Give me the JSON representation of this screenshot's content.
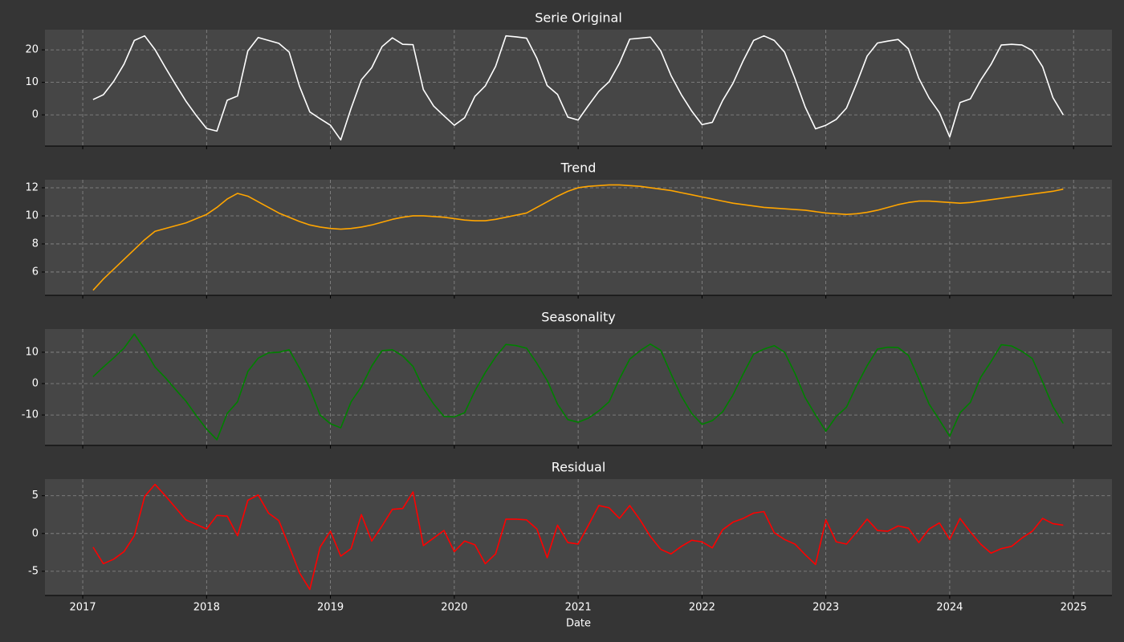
{
  "chart_data": [
    {
      "type": "line",
      "title": "Serie Original",
      "color": "#ffffff",
      "x": [
        "2017-01",
        "2017-02",
        "2017-03",
        "2017-04",
        "2017-05",
        "2017-06",
        "2017-07",
        "2017-08",
        "2017-09",
        "2017-10",
        "2017-11",
        "2017-12",
        "2018-01",
        "2018-02",
        "2018-03",
        "2018-04",
        "2018-05",
        "2018-06",
        "2018-07",
        "2018-08",
        "2018-09",
        "2018-10",
        "2018-11",
        "2018-12",
        "2019-01",
        "2019-02",
        "2019-03",
        "2019-04",
        "2019-05",
        "2019-06",
        "2019-07",
        "2019-08",
        "2019-09",
        "2019-10",
        "2019-11",
        "2019-12",
        "2020-01",
        "2020-02",
        "2020-03",
        "2020-04",
        "2020-05",
        "2020-06",
        "2020-07",
        "2020-08",
        "2020-09",
        "2020-10",
        "2020-11",
        "2020-12",
        "2021-01",
        "2021-02",
        "2021-03",
        "2021-04",
        "2021-05",
        "2021-06",
        "2021-07",
        "2021-08",
        "2021-09",
        "2021-10",
        "2021-11",
        "2021-12",
        "2022-01",
        "2022-02",
        "2022-03",
        "2022-04",
        "2022-05",
        "2022-06",
        "2022-07",
        "2022-08",
        "2022-09",
        "2022-10",
        "2022-11",
        "2022-12",
        "2023-01",
        "2023-02",
        "2023-03",
        "2023-04",
        "2023-05",
        "2023-06",
        "2023-07",
        "2023-08",
        "2023-09",
        "2023-10",
        "2023-11",
        "2023-12",
        "2024-01",
        "2024-02",
        "2024-03",
        "2024-04",
        "2024-05",
        "2024-06",
        "2024-07",
        "2024-08",
        "2024-09",
        "2024-10",
        "2024-11"
      ],
      "values": [
        4.7,
        6.2,
        10.3,
        15.6,
        22.9,
        24.3,
        20.1,
        14.6,
        9.3,
        4.2,
        -0.2,
        -4.2,
        -5,
        4.5,
        5.8,
        19.7,
        23.8,
        22.9,
        22,
        19.3,
        8.8,
        0.9,
        -1.2,
        -3.2,
        -7.7,
        2,
        10.8,
        14.5,
        21,
        23.7,
        21.7,
        21.6,
        7.8,
        2.7,
        -0.3,
        -3.2,
        -0.9,
        5.7,
        8.9,
        14.9,
        24.3,
        24,
        23.6,
        17.4,
        9,
        6.3,
        -0.7,
        -1.6,
        2.9,
        7.2,
        10.2,
        15.9,
        23.3,
        23.6,
        23.9,
        19.7,
        12.1,
        6.2,
        1.2,
        -3,
        -2.3,
        4.4,
        9.7,
        16.7,
        22.9,
        24.3,
        22.9,
        19.3,
        11.2,
        2.4,
        -4.3,
        -3.2,
        -1.4,
        2.1,
        9.8,
        18.1,
        22.1,
        22.7,
        23.2,
        20.3,
        11.3,
        5.2,
        0.7,
        -6.8,
        3.8,
        4.9,
        10.7,
        15.5,
        21.5,
        21.7,
        21.5,
        19.8,
        14.8,
        5.3,
        0
      ],
      "xlim": [
        2016.695,
        2025.31
      ],
      "xticks": [
        2017,
        2018,
        2019,
        2020,
        2021,
        2022,
        2023,
        2024,
        2025
      ],
      "ylim": [
        -9.6,
        26.2
      ],
      "yticks": [
        0,
        10,
        20
      ],
      "grid": true
    },
    {
      "type": "line",
      "title": "Trend",
      "color": "#ffa500",
      "x": [
        "2017-01",
        "2017-02",
        "2017-03",
        "2017-04",
        "2017-05",
        "2017-06",
        "2017-07",
        "2017-08",
        "2017-09",
        "2017-10",
        "2017-11",
        "2017-12",
        "2018-01",
        "2018-02",
        "2018-03",
        "2018-04",
        "2018-05",
        "2018-06",
        "2018-07",
        "2018-08",
        "2018-09",
        "2018-10",
        "2018-11",
        "2018-12",
        "2019-01",
        "2019-02",
        "2019-03",
        "2019-04",
        "2019-05",
        "2019-06",
        "2019-07",
        "2019-08",
        "2019-09",
        "2019-10",
        "2019-11",
        "2019-12",
        "2020-01",
        "2020-02",
        "2020-03",
        "2020-04",
        "2020-05",
        "2020-06",
        "2020-07",
        "2020-08",
        "2020-09",
        "2020-10",
        "2020-11",
        "2020-12",
        "2021-01",
        "2021-02",
        "2021-03",
        "2021-04",
        "2021-05",
        "2021-06",
        "2021-07",
        "2021-08",
        "2021-09",
        "2021-10",
        "2021-11",
        "2021-12",
        "2022-01",
        "2022-02",
        "2022-03",
        "2022-04",
        "2022-05",
        "2022-06",
        "2022-07",
        "2022-08",
        "2022-09",
        "2022-10",
        "2022-11",
        "2022-12",
        "2023-01",
        "2023-02",
        "2023-03",
        "2023-04",
        "2023-05",
        "2023-06",
        "2023-07",
        "2023-08",
        "2023-09",
        "2023-10",
        "2023-11",
        "2023-12",
        "2024-01",
        "2024-02",
        "2024-03",
        "2024-04",
        "2024-05",
        "2024-06",
        "2024-07",
        "2024-08",
        "2024-09",
        "2024-10",
        "2024-11"
      ],
      "values": [
        4.7,
        5.5,
        6.2,
        6.9,
        7.6,
        8.3,
        8.9,
        9.1,
        9.3,
        9.5,
        9.8,
        10.1,
        10.6,
        11.2,
        11.6,
        11.4,
        11.0,
        10.6,
        10.2,
        9.9,
        9.6,
        9.35,
        9.2,
        9.1,
        9.05,
        9.1,
        9.2,
        9.35,
        9.55,
        9.75,
        9.9,
        10.0,
        10.0,
        9.95,
        9.9,
        9.8,
        9.7,
        9.65,
        9.65,
        9.75,
        9.9,
        10.05,
        10.2,
        10.6,
        11.0,
        11.4,
        11.75,
        12.0,
        12.1,
        12.15,
        12.2,
        12.2,
        12.15,
        12.1,
        12.0,
        11.9,
        11.8,
        11.65,
        11.5,
        11.35,
        11.2,
        11.05,
        10.9,
        10.8,
        10.7,
        10.6,
        10.55,
        10.5,
        10.45,
        10.4,
        10.3,
        10.2,
        10.15,
        10.1,
        10.15,
        10.25,
        10.4,
        10.6,
        10.8,
        10.95,
        11.05,
        11.05,
        11.0,
        10.95,
        10.9,
        10.95,
        11.05,
        11.15,
        11.25,
        11.35,
        11.45,
        11.55,
        11.65,
        11.75,
        11.9
      ],
      "xlim": [
        2016.695,
        2025.31
      ],
      "xticks": [
        2017,
        2018,
        2019,
        2020,
        2021,
        2022,
        2023,
        2024,
        2025
      ],
      "ylim": [
        4.34,
        12.57
      ],
      "yticks": [
        6,
        8,
        10,
        12
      ],
      "grid": true
    },
    {
      "type": "line",
      "title": "Seasonality",
      "color": "#008000",
      "x": [
        "2017-01",
        "2017-02",
        "2017-03",
        "2017-04",
        "2017-05",
        "2017-06",
        "2017-07",
        "2017-08",
        "2017-09",
        "2017-10",
        "2017-11",
        "2017-12",
        "2018-01",
        "2018-02",
        "2018-03",
        "2018-04",
        "2018-05",
        "2018-06",
        "2018-07",
        "2018-08",
        "2018-09",
        "2018-10",
        "2018-11",
        "2018-12",
        "2019-01",
        "2019-02",
        "2019-03",
        "2019-04",
        "2019-05",
        "2019-06",
        "2019-07",
        "2019-08",
        "2019-09",
        "2019-10",
        "2019-11",
        "2019-12",
        "2020-01",
        "2020-02",
        "2020-03",
        "2020-04",
        "2020-05",
        "2020-06",
        "2020-07",
        "2020-08",
        "2020-09",
        "2020-10",
        "2020-11",
        "2020-12",
        "2021-01",
        "2021-02",
        "2021-03",
        "2021-04",
        "2021-05",
        "2021-06",
        "2021-07",
        "2021-08",
        "2021-09",
        "2021-10",
        "2021-11",
        "2021-12",
        "2022-01",
        "2022-02",
        "2022-03",
        "2022-04",
        "2022-05",
        "2022-06",
        "2022-07",
        "2022-08",
        "2022-09",
        "2022-10",
        "2022-11",
        "2022-12",
        "2023-01",
        "2023-02",
        "2023-03",
        "2023-04",
        "2023-05",
        "2023-06",
        "2023-07",
        "2023-08",
        "2023-09",
        "2023-10",
        "2023-11",
        "2023-12",
        "2024-01",
        "2024-02",
        "2024-03",
        "2024-04",
        "2024-05",
        "2024-06",
        "2024-07",
        "2024-08",
        "2024-09",
        "2024-10",
        "2024-11"
      ],
      "values": [
        2.2,
        5.3,
        8.2,
        11.3,
        15.8,
        11,
        5.3,
        1.9,
        -1.9,
        -5.6,
        -10.2,
        -14.5,
        -17.9,
        -9.5,
        -5.8,
        3.9,
        8.1,
        9.8,
        10,
        10.8,
        5,
        -1.5,
        -10,
        -12.8,
        -14.1,
        -5.8,
        -1,
        5.6,
        10.5,
        10.8,
        8.8,
        5.5,
        -1.5,
        -6.5,
        -10.5,
        -10.6,
        -9.3,
        -2.3,
        3.5,
        8.5,
        12.5,
        12.1,
        11.3,
        6.5,
        1,
        -6.5,
        -11.5,
        -12.3,
        -11,
        -8.7,
        -5.8,
        1.5,
        7.8,
        10.5,
        12.6,
        10.6,
        3.1,
        -4,
        -9.5,
        -13,
        -11.8,
        -9,
        -3.6,
        3.1,
        9.4,
        11,
        12.1,
        10,
        3.3,
        -4.5,
        -10,
        -15.2,
        -10.5,
        -7.5,
        -0.5,
        5.7,
        11,
        11.6,
        11.5,
        9,
        1.5,
        -6.5,
        -11.6,
        -16.8,
        -9.3,
        -6,
        2,
        7,
        12.4,
        12,
        10.3,
        8,
        0.5,
        -7.3,
        -12.7
      ],
      "xlim": [
        2016.695,
        2025.31
      ],
      "xticks": [
        2017,
        2018,
        2019,
        2020,
        2021,
        2022,
        2023,
        2024,
        2025
      ],
      "ylim": [
        -19.7,
        17.4
      ],
      "yticks": [
        -10,
        0,
        10
      ],
      "grid": true
    },
    {
      "type": "line",
      "title": "Residual",
      "color": "#ff0000",
      "xlabel": "Date",
      "x": [
        "2017-01",
        "2017-02",
        "2017-03",
        "2017-04",
        "2017-05",
        "2017-06",
        "2017-07",
        "2017-08",
        "2017-09",
        "2017-10",
        "2017-11",
        "2017-12",
        "2018-01",
        "2018-02",
        "2018-03",
        "2018-04",
        "2018-05",
        "2018-06",
        "2018-07",
        "2018-08",
        "2018-09",
        "2018-10",
        "2018-11",
        "2018-12",
        "2019-01",
        "2019-02",
        "2019-03",
        "2019-04",
        "2019-05",
        "2019-06",
        "2019-07",
        "2019-08",
        "2019-09",
        "2019-10",
        "2019-11",
        "2019-12",
        "2020-01",
        "2020-02",
        "2020-03",
        "2020-04",
        "2020-05",
        "2020-06",
        "2020-07",
        "2020-08",
        "2020-09",
        "2020-10",
        "2020-11",
        "2020-12",
        "2021-01",
        "2021-02",
        "2021-03",
        "2021-04",
        "2021-05",
        "2021-06",
        "2021-07",
        "2021-08",
        "2021-09",
        "2021-10",
        "2021-11",
        "2021-12",
        "2022-01",
        "2022-02",
        "2022-03",
        "2022-04",
        "2022-05",
        "2022-06",
        "2022-07",
        "2022-08",
        "2022-09",
        "2022-10",
        "2022-11",
        "2022-12",
        "2023-01",
        "2023-02",
        "2023-03",
        "2023-04",
        "2023-05",
        "2023-06",
        "2023-07",
        "2023-08",
        "2023-09",
        "2023-10",
        "2023-11",
        "2023-12",
        "2024-01",
        "2024-02",
        "2024-03",
        "2024-04",
        "2024-05",
        "2024-06",
        "2024-07",
        "2024-08",
        "2024-09",
        "2024-10",
        "2024-11"
      ],
      "values": [
        -1.8,
        -4,
        -3.4,
        -2.4,
        -0.3,
        4.9,
        6.5,
        5,
        3.4,
        1.8,
        1.2,
        0.6,
        2.4,
        2.3,
        -0.3,
        4.4,
        5.1,
        2.7,
        1.7,
        -1.7,
        -5.2,
        -7.4,
        -1.8,
        0.3,
        -3,
        -2,
        2.5,
        -1,
        1,
        3.2,
        3.3,
        5.5,
        -1.6,
        -0.6,
        0.4,
        -2.4,
        -1,
        -1.5,
        -4,
        -2.7,
        1.9,
        1.9,
        1.8,
        0.6,
        -3.2,
        1.1,
        -1.2,
        -1.4,
        1.1,
        3.7,
        3.4,
        2,
        3.7,
        1.8,
        -0.4,
        -2.1,
        -2.7,
        -1.7,
        -0.9,
        -1.1,
        -1.9,
        0.5,
        1.5,
        2,
        2.7,
        2.9,
        0.1,
        -0.8,
        -1.4,
        -2.8,
        -4.1,
        1.8,
        -1.1,
        -1.4,
        0.2,
        1.9,
        0.4,
        0.3,
        1,
        0.7,
        -1.2,
        0.6,
        1.4,
        -0.8,
        2,
        0.2,
        -1.4,
        -2.6,
        -2,
        -1.7,
        -0.6,
        0.3,
        2,
        1.3,
        1.1
      ],
      "xlim": [
        2016.695,
        2025.31
      ],
      "xticks": [
        2017,
        2018,
        2019,
        2020,
        2021,
        2022,
        2023,
        2024,
        2025
      ],
      "ylim": [
        -8.2,
        7.2
      ],
      "yticks": [
        -5,
        0,
        5
      ],
      "grid": true
    }
  ]
}
